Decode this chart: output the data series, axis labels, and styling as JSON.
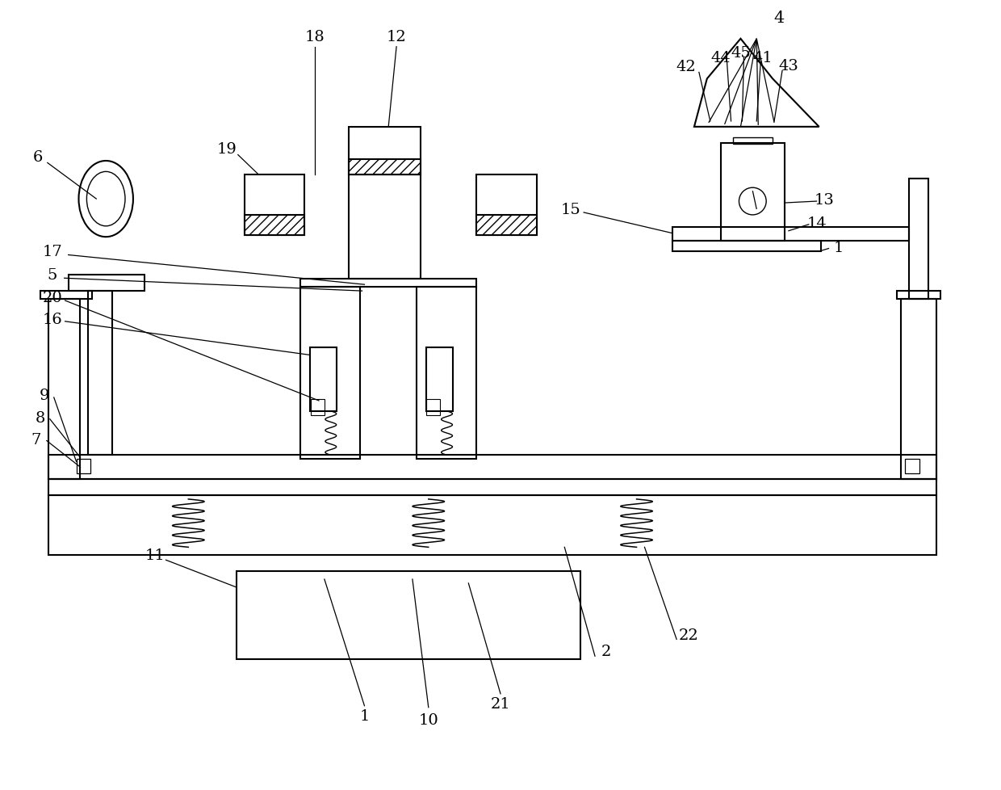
{
  "bg_color": "#ffffff",
  "fig_width": 12.4,
  "fig_height": 9.79,
  "dpi": 100,
  "lw": 1.5,
  "fs": 14
}
